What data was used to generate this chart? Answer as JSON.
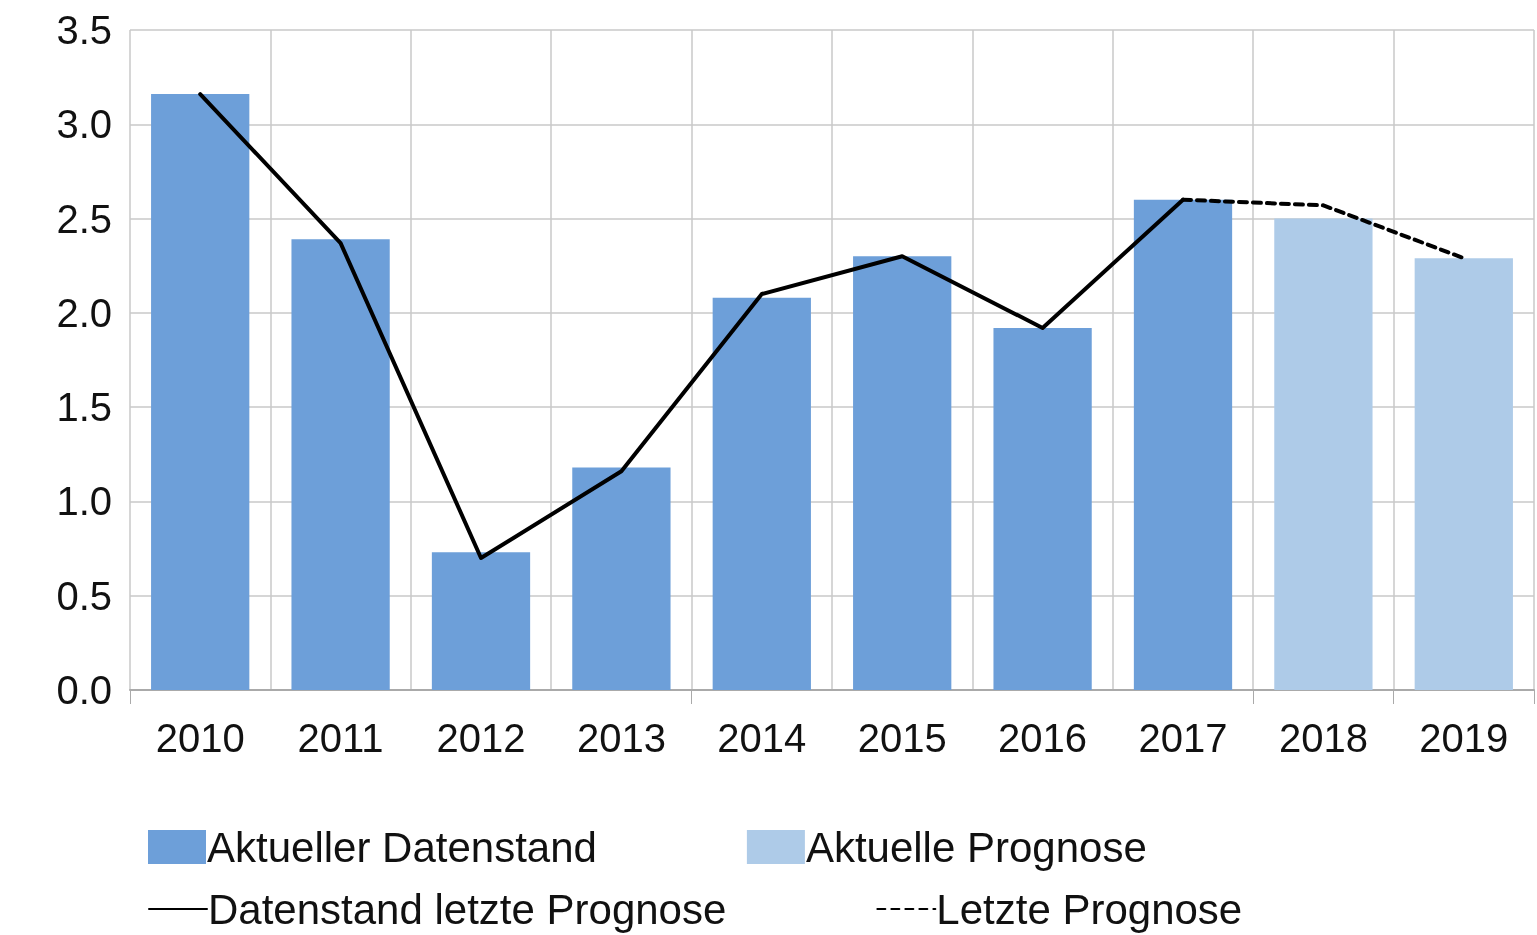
{
  "chart_data": {
    "type": "bar",
    "stacked": true,
    "categories": [
      "2010",
      "2011",
      "2012",
      "2013",
      "2014",
      "2015",
      "2016",
      "2017",
      "2018",
      "2019"
    ],
    "series": [
      {
        "name": "Aktueller Datenstand",
        "color": "#6d9fd9",
        "values": [
          3.16,
          2.39,
          0.73,
          1.18,
          2.08,
          2.3,
          1.92,
          2.6,
          null,
          null
        ]
      },
      {
        "name": "Aktuelle Prognose",
        "color": "#aecbe8",
        "values": [
          null,
          null,
          null,
          null,
          null,
          null,
          null,
          null,
          2.5,
          2.29
        ]
      },
      {
        "name": "Datenstand letzte Prognose",
        "type": "line",
        "color": "#000000",
        "line_style": "solid",
        "values": [
          3.16,
          2.37,
          0.7,
          1.16,
          2.1,
          2.3,
          1.92,
          2.6,
          null,
          null
        ]
      },
      {
        "name": "Letzte Prognose",
        "type": "line",
        "color": "#000000",
        "line_style": "dashed",
        "values": [
          null,
          null,
          null,
          null,
          null,
          null,
          null,
          2.6,
          2.57,
          2.29
        ]
      }
    ],
    "ylim": [
      0,
      3.5
    ],
    "yticks": [
      {
        "value": 0,
        "label": "0.0"
      },
      0.5,
      {
        "value": 1,
        "label": "1.0"
      },
      1.5,
      {
        "value": 2,
        "label": "2.0"
      },
      2.5,
      {
        "value": 3,
        "label": "3.0"
      },
      3.5
    ],
    "grid": true,
    "legend": "bottom",
    "marker": "none"
  }
}
